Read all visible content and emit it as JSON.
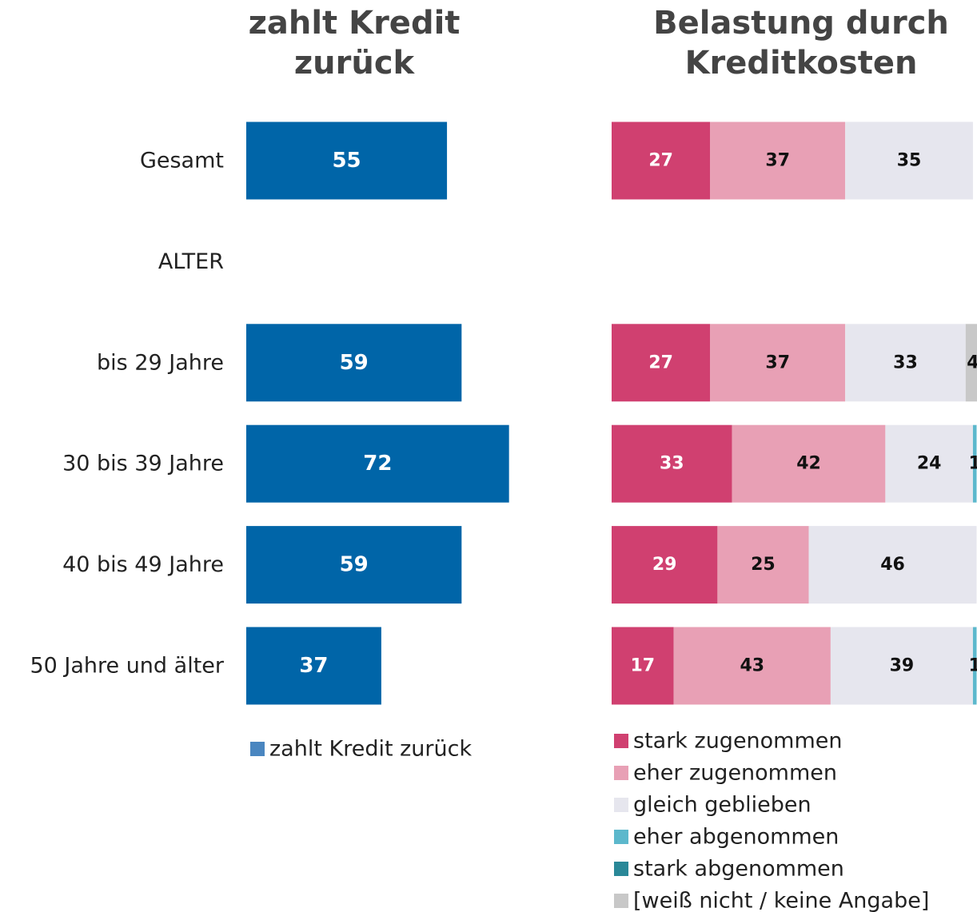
{
  "chart_data": [
    {
      "type": "bar",
      "orientation": "horizontal",
      "title": "zahlt Kredit zurück",
      "categories": [
        "Gesamt",
        "ALTER",
        "bis 29 Jahre",
        "30 bis 39 Jahre",
        "40 bis 49 Jahre",
        "50 Jahre und älter"
      ],
      "series": [
        {
          "name": "zahlt Kredit zurück",
          "color": "#0065a8",
          "values": [
            55,
            null,
            59,
            72,
            59,
            37
          ]
        }
      ],
      "xlim": [
        0,
        100
      ]
    },
    {
      "type": "stacked_bar",
      "orientation": "horizontal",
      "title": "Belastung durch Kreditkosten",
      "series": [
        {
          "name": "stark zugenommen",
          "color": "#d04070",
          "values": [
            27,
            null,
            27,
            33,
            29,
            17
          ]
        },
        {
          "name": "eher zugenommen",
          "color": "#e8a0b5",
          "values": [
            37,
            null,
            37,
            42,
            25,
            43
          ]
        },
        {
          "name": "gleich geblieben",
          "color": "#e6e6ee",
          "values": [
            35,
            null,
            33,
            24,
            46,
            39
          ]
        },
        {
          "name": "eher abgenommen",
          "color": "#5cb8cc",
          "values": [
            null,
            null,
            null,
            1,
            null,
            1
          ]
        },
        {
          "name": "stark abgenommen",
          "color": "#2a8898",
          "values": [
            null,
            null,
            null,
            null,
            null,
            null
          ]
        },
        {
          "name": "[weiß nicht / keine Angabe]",
          "color": "#c8c8c8",
          "values": [
            null,
            null,
            4,
            null,
            null,
            null
          ]
        }
      ],
      "xlim": [
        0,
        100
      ]
    }
  ]
}
